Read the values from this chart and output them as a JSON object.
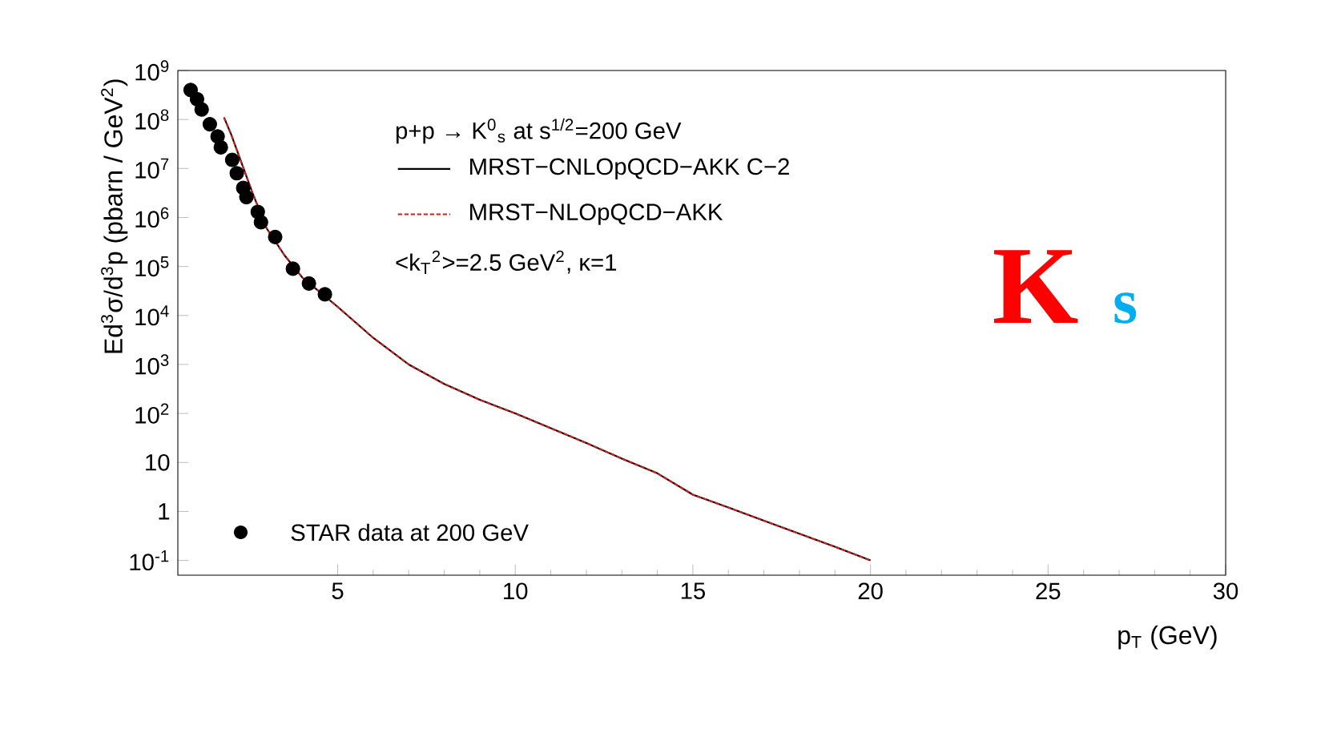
{
  "chart_data": {
    "type": "line",
    "legend_title": "p+p → K$^{0}$$_{s}$ at s$^{1/2}$=200 GeV",
    "xlabel": "p$_{T}$ (GeV)",
    "ylabel": "Ed$^{3}$σ/d$^{3}$p (pbarn / GeV$^{2}$)",
    "log": "y",
    "xlim": [
      0.5,
      30
    ],
    "xticks": [
      5,
      10,
      15,
      20,
      25,
      30
    ],
    "ylim": [
      0.05,
      1000000000
    ],
    "yticks": [
      {
        "value": 0.1,
        "label": "10$^{-1}$"
      },
      1,
      10,
      {
        "value": 100,
        "label": "10$^{2}$"
      },
      {
        "value": 1000,
        "label": "10$^{3}$"
      },
      {
        "value": 10000,
        "label": "10$^{4}$"
      },
      {
        "value": 100000,
        "label": "10$^{5}$"
      },
      {
        "value": 1000000,
        "label": "10$^{6}$"
      },
      {
        "value": 10000000,
        "label": "10$^{7}$"
      },
      {
        "value": 100000000,
        "label": "10$^{8}$"
      },
      {
        "value": 1000000000,
        "label": "10$^{9}$"
      }
    ],
    "grid": false,
    "legend": "left",
    "series": [
      {
        "name": "MRST−CNLOpQCD−AKK C−2",
        "color": "#000000",
        "line_style": "solid",
        "marker": "none",
        "x": [
          1.8,
          2,
          2.6,
          3,
          3.5,
          4,
          4.5,
          5,
          6,
          7,
          8,
          9,
          10,
          11,
          12,
          13,
          14,
          15,
          16,
          17,
          18,
          19,
          20
        ],
        "values": [
          110000000,
          50000000,
          3200000,
          600000,
          170000,
          60000,
          30000,
          15000,
          3500,
          1000,
          400,
          190,
          100,
          50,
          25,
          12,
          6,
          2.2,
          1.2,
          0.65,
          0.35,
          0.19,
          0.1
        ]
      },
      {
        "name": "MRST−NLOpQCD−AKK",
        "color": "#d02020",
        "line_style": "dashed",
        "marker": "none",
        "x": [
          1.8,
          2,
          2.6,
          3,
          3.5,
          4,
          4.5,
          5,
          6,
          7,
          8,
          9,
          10,
          11,
          12,
          13,
          14,
          15,
          16,
          17,
          18,
          19,
          20
        ],
        "values": [
          110000000,
          50000000,
          3200000,
          600000,
          170000,
          60000,
          30000,
          15000,
          3500,
          1000,
          400,
          190,
          100,
          50,
          25,
          12,
          6,
          2.2,
          1.2,
          0.65,
          0.35,
          0.19,
          0.1
        ]
      },
      {
        "name": "STAR data at 200 GeV",
        "type": "scatter",
        "color": "#000000",
        "marker": "circle",
        "x": [
          0.86,
          1.04,
          1.17,
          1.4,
          1.62,
          1.71,
          2.03,
          2.16,
          2.34,
          2.43,
          2.75,
          2.84,
          3.24,
          3.74,
          4.19,
          4.64
        ],
        "values": [
          400000000,
          260000000,
          160000000,
          80000000,
          45000000,
          27000000,
          15000000,
          8000000,
          4000000,
          2600000,
          1300000,
          800000,
          400000,
          90000,
          45000,
          27000
        ]
      }
    ],
    "annotations": [
      "<k$_{T}$$^{2}$>=2.5 GeV$^{2}$, κ=1",
      "K",
      "s"
    ]
  }
}
